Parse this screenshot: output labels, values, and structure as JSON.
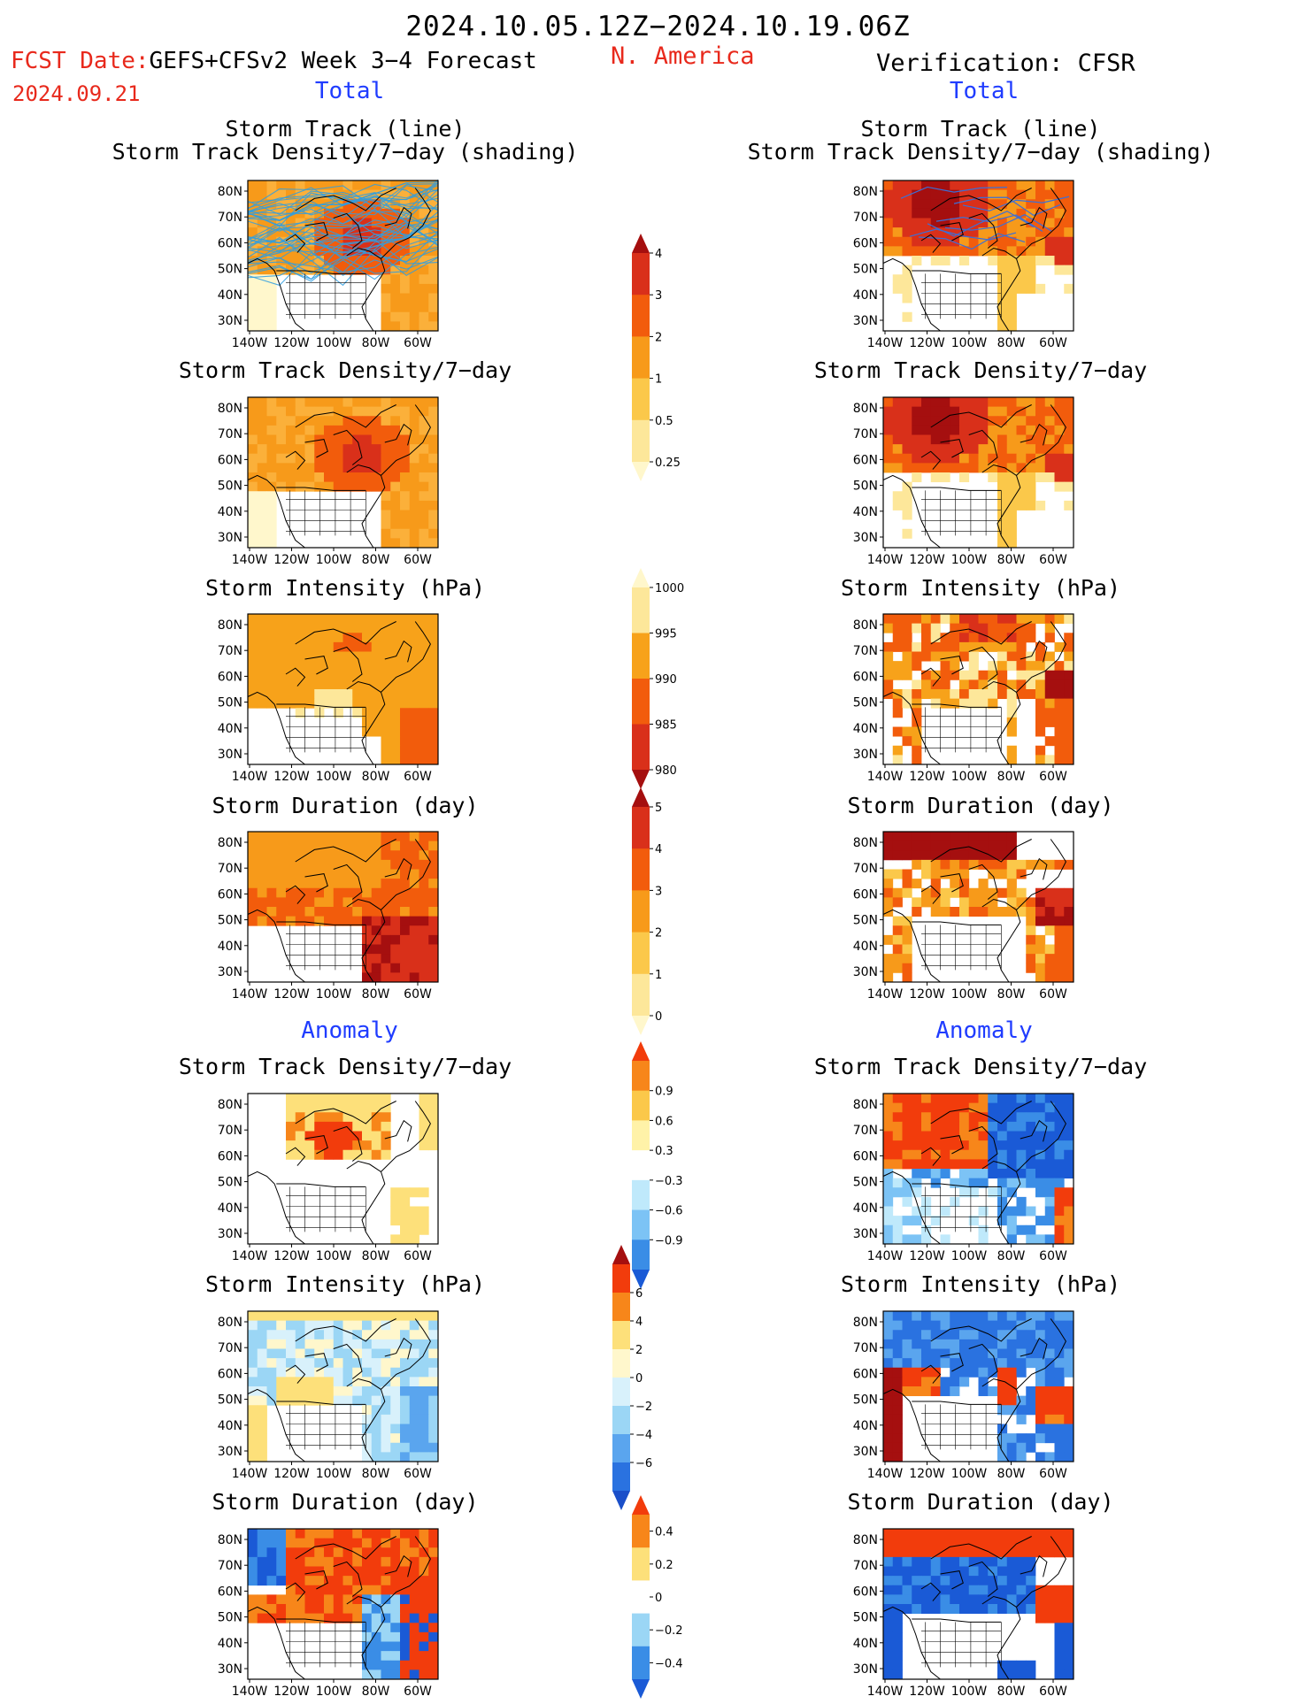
{
  "header": {
    "period": "2024.10.05.12Z−2024.10.19.06Z",
    "fcst_label": "FCST Date:",
    "fcst_model": "GEFS+CFSv2 Week 3−4 Forecast",
    "fcst_date": "2024.09.21",
    "region": "N. America",
    "verification": "Verification: CFSR"
  },
  "sections": {
    "total": "Total",
    "anomaly": "Anomaly"
  },
  "panel_titles": {
    "track_line": "Storm Track (line)",
    "track_shading": "Storm Track Density/7−day (shading)",
    "density": "Storm Track Density/7−day",
    "intensity": "Storm Intensity (hPa)",
    "duration": "Storm Duration (day)"
  },
  "axes": {
    "lat_labels": [
      "80N",
      "70N",
      "60N",
      "50N",
      "40N",
      "30N"
    ],
    "lon_labels": [
      "140W",
      "120W",
      "100W",
      "80W",
      "60W"
    ]
  },
  "colorbars": {
    "density_total": {
      "labels": [
        "4",
        "3",
        "2",
        "1",
        "0.5",
        "0.25"
      ],
      "colors": [
        "#a50f0f",
        "#d9301a",
        "#f25c0c",
        "#f79a1a",
        "#fbc84a",
        "#fde79a",
        "#fff7cc"
      ]
    },
    "intensity_total": {
      "labels": [
        "1000",
        "995",
        "990",
        "985",
        "980"
      ],
      "colors": [
        "#fff7cc",
        "#fde79a",
        "#f7a21a",
        "#f25c0c",
        "#d9301a",
        "#a50f0f"
      ]
    },
    "duration_total": {
      "labels": [
        "5",
        "4",
        "3",
        "2",
        "1",
        "0"
      ],
      "colors": [
        "#a50f0f",
        "#d9301a",
        "#f25c0c",
        "#f79a1a",
        "#fbc84a",
        "#fde79a",
        "#fff7cc"
      ]
    },
    "density_anom": {
      "labels": [
        "0.9",
        "0.6",
        "0.3",
        "−0.3",
        "−0.6",
        "−0.9"
      ],
      "colors": [
        "#f23c0c",
        "#f7861a",
        "#fbc84a",
        "#fff2a8",
        "#ffffff",
        "#bfe9fb",
        "#7cc3f5",
        "#3a8de6",
        "#1a5ad6"
      ]
    },
    "intensity_anom": {
      "labels": [
        "6",
        "4",
        "2",
        "0",
        "−2",
        "−4",
        "−6"
      ],
      "colors": [
        "#a50f0f",
        "#f23c0c",
        "#f7861a",
        "#fde07a",
        "#fff7cc",
        "#d8f1fb",
        "#9bd6f5",
        "#5aa5ee",
        "#2a72e0",
        "#1a4fc9"
      ]
    },
    "duration_anom": {
      "labels": [
        "0.4",
        "0.2",
        "0",
        "−0.2",
        "−0.4"
      ],
      "colors": [
        "#f23c0c",
        "#f7861a",
        "#fde07a",
        "#ffffff",
        "#9bd6f5",
        "#3a8de6",
        "#1a5ad6"
      ]
    }
  },
  "palette": {
    "title_red": "#e8291c",
    "section_blue": "#1f3cff",
    "track_blue": "#2f9de0"
  }
}
